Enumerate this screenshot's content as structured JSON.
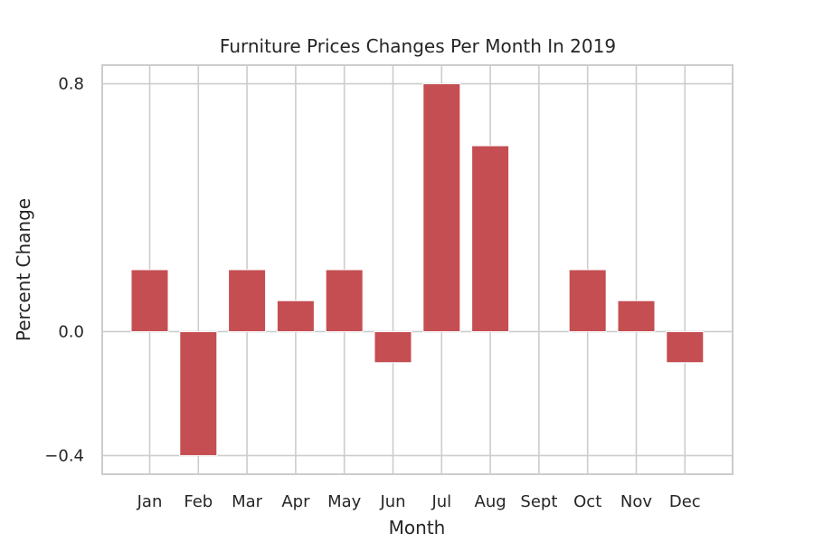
{
  "chart_data": {
    "type": "bar",
    "title": "Furniture Prices Changes Per Month In 2019",
    "xlabel": "Month",
    "ylabel": "Percent Change",
    "categories": [
      "Jan",
      "Feb",
      "Mar",
      "Apr",
      "May",
      "Jun",
      "Jul",
      "Aug",
      "Sept",
      "Oct",
      "Nov",
      "Dec"
    ],
    "values": [
      0.2,
      -0.4,
      0.2,
      0.1,
      0.2,
      -0.1,
      0.8,
      0.6,
      0.0,
      0.2,
      0.1,
      -0.1
    ],
    "yticks": [
      -0.4,
      0.0,
      0.8
    ],
    "ytick_labels": [
      "−0.4",
      "0.0",
      "0.8"
    ],
    "ylim": [
      -0.46,
      0.86
    ],
    "grid": true,
    "bar_color": "#c44e52",
    "grid_color": "#cccccc"
  }
}
